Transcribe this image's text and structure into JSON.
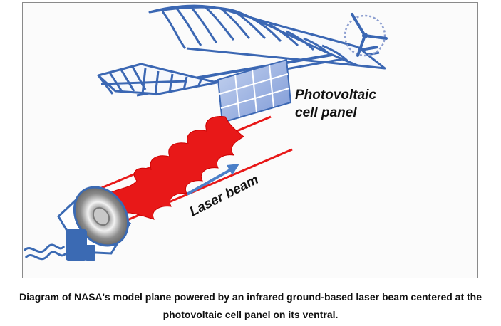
{
  "diagram": {
    "labels": {
      "panel_line1": "Photovoltaic",
      "panel_line2": "cell panel",
      "laser": "Laser beam"
    },
    "colors": {
      "frame": "#3b67b3",
      "panel_fill": "#8aa6dd",
      "beam": "#e81818",
      "device": "#3b6ab3",
      "arrow": "#4a7fc8",
      "text": "#111111"
    },
    "icons": [
      "airplane-icon",
      "propeller-icon",
      "photovoltaic-panel-icon",
      "laser-emitter-icon",
      "laser-beam-icon",
      "arrow-icon"
    ]
  },
  "caption": {
    "line1": "Diagram of NASA's model plane powered by an infrared ground-based laser beam centered at the",
    "line2": "photovoltaic cell panel on its ventral."
  }
}
